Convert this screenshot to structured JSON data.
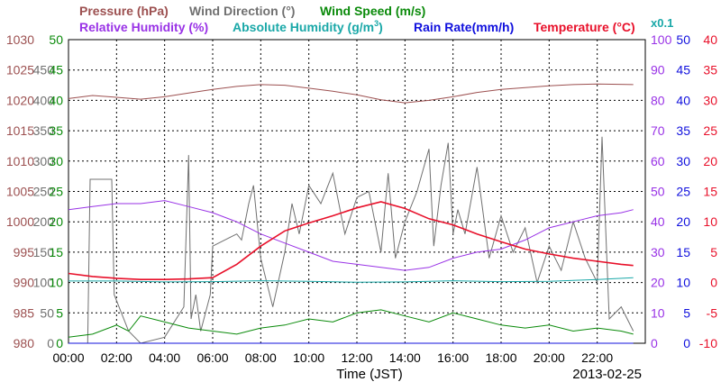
{
  "chart_data": {
    "type": "line",
    "titles": {
      "pressure": "Pressure (hPa)",
      "wind_direction": "Wind Direction (°)",
      "wind_speed": "Wind Speed (m/s)",
      "humidity": "Relative Humidity (%)",
      "abs_humidity": "Absolute Humidity (g/m",
      "abs_humidity_sup": "3",
      "abs_humidity_end": ")",
      "rain": "Rain Rate(mm/h)",
      "temperature": "Temperature (°C)",
      "abs_scale": "x0.1"
    },
    "xlabel": "Time (JST)",
    "date": "2013-02-25",
    "x_ticks": [
      "00:00",
      "02:00",
      "04:00",
      "06:00",
      "08:00",
      "10:00",
      "12:00",
      "14:00",
      "16:00",
      "18:00",
      "20:00",
      "22:00"
    ],
    "xlim": [
      0,
      24
    ],
    "grid": true,
    "axes": {
      "pressure": {
        "ticks": [
          "1030",
          "1025",
          "1020",
          "1015",
          "1010",
          "1005",
          "1000",
          "995",
          "990",
          "985",
          "980"
        ],
        "range": [
          980,
          1030
        ]
      },
      "wind_direction": {
        "ticks": [
          "450",
          "400",
          "350",
          "300",
          "250",
          "200",
          "150",
          "100",
          "50",
          "0"
        ],
        "range": [
          0,
          500
        ]
      },
      "wind_speed": {
        "ticks": [
          "50",
          "45",
          "40",
          "35",
          "30",
          "25",
          "20",
          "15",
          "10",
          "5",
          "0"
        ],
        "range": [
          0,
          50
        ]
      },
      "humidity": {
        "ticks": [
          "100",
          "90",
          "80",
          "70",
          "60",
          "50",
          "40",
          "30",
          "20",
          "10",
          "0"
        ],
        "range": [
          0,
          100
        ]
      },
      "rain": {
        "ticks": [
          "50",
          "45",
          "40",
          "35",
          "30",
          "25",
          "20",
          "15",
          "10",
          "5",
          "0"
        ],
        "range": [
          0,
          50
        ]
      },
      "temperature": {
        "ticks": [
          "40",
          "35",
          "30",
          "25",
          "20",
          "15",
          "10",
          "5",
          "0",
          "-5",
          "-10"
        ],
        "range": [
          -10,
          40
        ]
      }
    },
    "series": [
      {
        "name": "Pressure",
        "axis": "pressure",
        "color": "#9c5050",
        "x": [
          0,
          1,
          2,
          3,
          4,
          5,
          6,
          7,
          8,
          9,
          10,
          11,
          12,
          13,
          14,
          15,
          16,
          17,
          18,
          19,
          20,
          21,
          22,
          23.5
        ],
        "y": [
          1020.3,
          1020.8,
          1020.5,
          1020.2,
          1020.6,
          1021.2,
          1021.8,
          1022.3,
          1022.6,
          1022.5,
          1022.0,
          1021.5,
          1020.9,
          1020.1,
          1019.6,
          1020.0,
          1020.6,
          1021.3,
          1021.8,
          1022.1,
          1022.4,
          1022.6,
          1022.7,
          1022.6
        ]
      },
      {
        "name": "Wind Direction",
        "axis": "wind_direction",
        "color": "#707070",
        "x": [
          0,
          0.8,
          0.9,
          1.8,
          1.9,
          2.5,
          3,
          4,
          4.8,
          5,
          5.1,
          5.3,
          5.5,
          5.9,
          6,
          6.5,
          7,
          7.2,
          7.5,
          7.7,
          8,
          8.5,
          9,
          9.3,
          9.6,
          10,
          10.5,
          11,
          11.5,
          12,
          12.5,
          13,
          13.3,
          13.6,
          14,
          14.5,
          15,
          15.2,
          15.5,
          15.8,
          16,
          16.2,
          16.5,
          17,
          17.5,
          18,
          18.5,
          19,
          19.5,
          20,
          20.5,
          21,
          21.5,
          22,
          22.2,
          22.5,
          23,
          23.5
        ],
        "y": [
          0,
          0,
          270,
          270,
          80,
          20,
          0,
          10,
          60,
          310,
          40,
          80,
          20,
          80,
          160,
          170,
          180,
          170,
          230,
          260,
          140,
          60,
          150,
          230,
          180,
          260,
          230,
          280,
          180,
          240,
          250,
          150,
          280,
          140,
          200,
          250,
          320,
          160,
          260,
          330,
          180,
          220,
          180,
          290,
          140,
          210,
          150,
          190,
          100,
          160,
          120,
          200,
          140,
          100,
          340,
          40,
          60,
          20
        ]
      },
      {
        "name": "Wind Speed",
        "axis": "wind_speed",
        "color": "#0a8a0a",
        "x": [
          0,
          1,
          2,
          2.5,
          3,
          4,
          5,
          6,
          7,
          8,
          9,
          10,
          11,
          12,
          13,
          14,
          15,
          16,
          17,
          18,
          19,
          20,
          21,
          22,
          23,
          23.5
        ],
        "y": [
          1,
          1.5,
          3,
          2,
          4.5,
          3.5,
          2.5,
          2,
          1.5,
          2.5,
          3,
          4,
          3.5,
          5,
          5.5,
          4.5,
          3.5,
          5,
          4,
          3,
          2.5,
          3,
          2,
          2.5,
          2,
          1.5
        ]
      },
      {
        "name": "Relative Humidity",
        "axis": "humidity",
        "color": "#9932e6",
        "x": [
          0,
          1,
          2,
          3,
          4,
          5,
          6,
          7,
          8,
          9,
          10,
          11,
          12,
          13,
          14,
          15,
          16,
          17,
          18,
          19,
          20,
          21,
          22,
          23,
          23.5
        ],
        "y": [
          44,
          45,
          46,
          46,
          47,
          45,
          43,
          40,
          36,
          33,
          30,
          27,
          26,
          25,
          24,
          25,
          28,
          30,
          31,
          34,
          38,
          40,
          42,
          43,
          44
        ]
      },
      {
        "name": "Absolute Humidity",
        "axis": "humidity",
        "color": "#1aa8a8",
        "x": [
          0,
          2,
          4,
          6,
          8,
          10,
          12,
          14,
          16,
          18,
          20,
          22,
          23.5
        ],
        "y": [
          20.5,
          20.5,
          20.2,
          20.3,
          20.6,
          20.4,
          20.1,
          20.2,
          20.6,
          20.3,
          20.4,
          21.0,
          21.6
        ]
      },
      {
        "name": "Rain Rate",
        "axis": "rain",
        "color": "#1010dd",
        "x": [
          0,
          23.5
        ],
        "y": [
          0,
          0
        ]
      },
      {
        "name": "Temperature",
        "axis": "temperature",
        "color": "#e8102a",
        "x": [
          0,
          1,
          2,
          3,
          4,
          5,
          6,
          7,
          8,
          9,
          10,
          11,
          12,
          13,
          14,
          15,
          16,
          17,
          18,
          19,
          20,
          21,
          22,
          23,
          23.5
        ],
        "y": [
          1.5,
          1,
          0.7,
          0.5,
          0.5,
          0.6,
          0.8,
          3,
          6,
          8.5,
          9.8,
          11,
          12.3,
          13.3,
          12.2,
          10.5,
          9.5,
          8,
          6.7,
          5.5,
          4.7,
          4,
          3.5,
          3,
          2.8
        ]
      }
    ]
  }
}
